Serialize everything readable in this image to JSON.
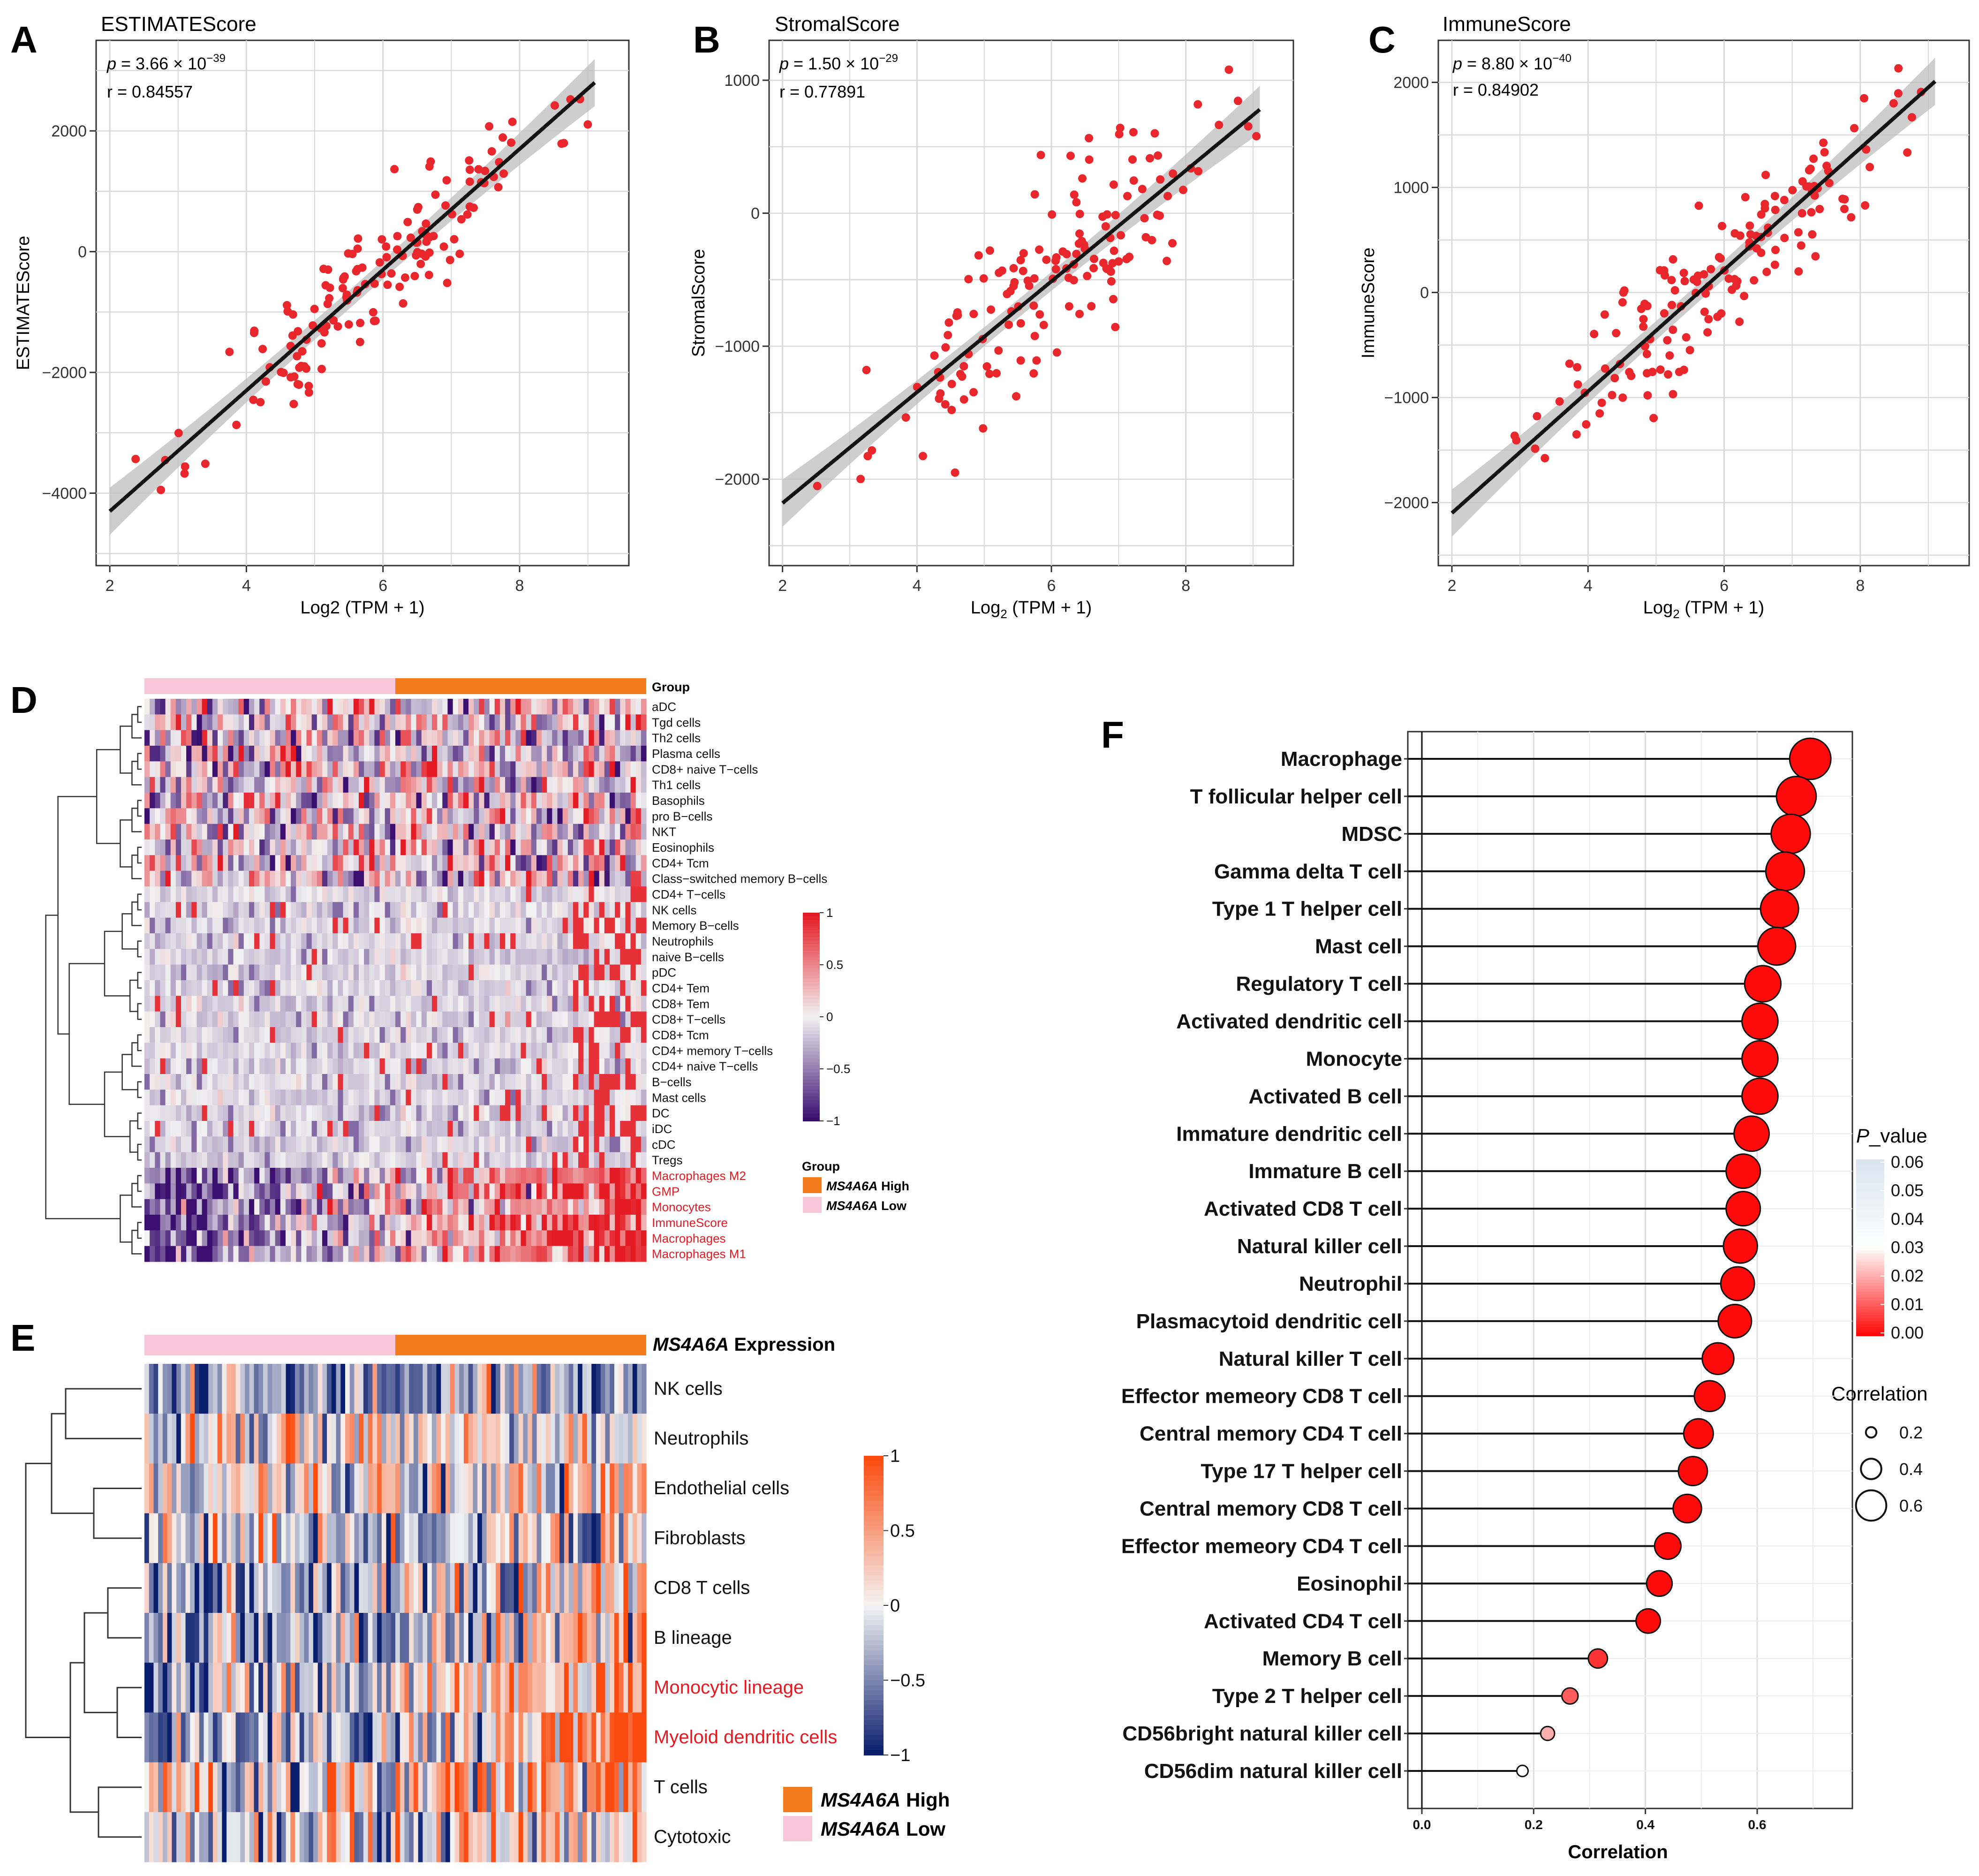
{
  "panel_letters": {
    "A": "A",
    "B": "B",
    "C": "C",
    "D": "D",
    "E": "E",
    "F": "F"
  },
  "colors": {
    "point": "#e8262b",
    "line": "#111111",
    "band": "#bdbdbd",
    "grid": "#d9d9d9",
    "high": "#f37d1e",
    "low": "#f7c6d9",
    "dmax": "#e51b24",
    "dmin": "#3b0f70",
    "emax": "#fb4b0f",
    "emin": "#0a1e6e"
  },
  "chart_data": [
    {
      "id": "A",
      "type": "scatter",
      "title": "ESTIMATEScore",
      "xlabel": "Log2 (TPM + 1)",
      "ylabel": "ESTIMATEScore",
      "p_prefix": "p",
      "p_text": " = 3.66 × 10",
      "p_exp": "−39",
      "r_text": "r = 0.84557",
      "xlim": [
        1.8,
        9.6
      ],
      "ylim": [
        -5200,
        3500
      ],
      "xticks": [
        2,
        4,
        6,
        8
      ],
      "yticks": [
        -4000,
        -2000,
        0,
        2000
      ],
      "ytick_labels": [
        "−4000",
        "−2000",
        "0",
        "2000"
      ],
      "fit": {
        "x0": 2.0,
        "y0": -4300,
        "x1": 9.1,
        "y1": 2800
      },
      "n_points": 150,
      "noise": 550,
      "seed": 11
    },
    {
      "id": "B",
      "type": "scatter",
      "title": "StromalScore",
      "xlabel_main": "Log",
      "xlabel_sub": "2",
      "xlabel_rest": " (TPM + 1)",
      "ylabel": "StromalScore",
      "p_prefix": "p",
      "p_text": " = 1.50 × 10",
      "p_exp": "−29",
      "r_text": "r = 0.77891",
      "xlim": [
        1.8,
        9.6
      ],
      "ylim": [
        -2650,
        1300
      ],
      "xticks": [
        2,
        4,
        6,
        8
      ],
      "yticks": [
        -2000,
        -1000,
        0,
        1000
      ],
      "ytick_labels": [
        "−2000",
        "−1000",
        "0",
        "1000"
      ],
      "fit": {
        "x0": 2.0,
        "y0": -2180,
        "x1": 9.1,
        "y1": 780
      },
      "n_points": 150,
      "noise": 330,
      "seed": 23
    },
    {
      "id": "C",
      "type": "scatter",
      "title": "ImmuneScore",
      "xlabel_main": "Log",
      "xlabel_sub": "2",
      "xlabel_rest": " (TPM + 1)",
      "ylabel": "ImmuneScore",
      "p_prefix": "p",
      "p_text": " = 8.80 × 10",
      "p_exp": "−40",
      "r_text": "r = 0.84902",
      "xlim": [
        1.8,
        9.6
      ],
      "ylim": [
        -2600,
        2400
      ],
      "xticks": [
        2,
        4,
        6,
        8
      ],
      "yticks": [
        -2000,
        -1000,
        0,
        1000,
        2000
      ],
      "ytick_labels": [
        "−2000",
        "−1000",
        "0",
        "1000",
        "2000"
      ],
      "fit": {
        "x0": 2.0,
        "y0": -2100,
        "x1": 9.1,
        "y1": 2010
      },
      "n_points": 150,
      "noise": 340,
      "seed": 37
    },
    {
      "id": "D",
      "type": "heatmap",
      "group_label": "Group",
      "rows": [
        "aDC",
        "Tgd cells",
        "Th2 cells",
        "Plasma cells",
        "CD8+ naive T−cells",
        "Th1 cells",
        "Basophils",
        "pro B−cells",
        "NKT",
        "Eosinophils",
        "CD4+ Tcm",
        "Class−switched memory B−cells",
        "CD4+ T−cells",
        "NK cells",
        "Memory B−cells",
        "Neutrophils",
        "naive B−cells",
        "pDC",
        "CD4+ Tem",
        "CD8+ Tem",
        "CD8+ T−cells",
        "CD8+ Tcm",
        "CD4+ memory T−cells",
        "CD4+ naive T−cells",
        "B−cells",
        "Mast cells",
        "DC",
        "iDC",
        "cDC",
        "Tregs",
        "Macrophages M2",
        "GMP",
        "Monocytes",
        "ImmuneScore",
        "Macrophages",
        "Macrophages M1"
      ],
      "highlight_rows": [
        "Macrophages M2",
        "GMP",
        "Monocytes",
        "ImmuneScore",
        "Macrophages",
        "Macrophages M1"
      ],
      "scale_ticks": [
        1,
        0.5,
        0,
        -0.5,
        -1
      ],
      "scale_labels": [
        "1",
        "0.5",
        "0",
        "−0.5",
        "−1"
      ],
      "legend_title": "Group",
      "legend_items": [
        {
          "name": "MS4A6A",
          "suffix": " High",
          "color": "#f37d1e"
        },
        {
          "name": "MS4A6A",
          "suffix": " Low",
          "color": "#f7c6d9"
        }
      ]
    },
    {
      "id": "E",
      "type": "heatmap",
      "header_italic": "MS4A6A",
      "header_rest": " Expression",
      "rows": [
        "NK cells",
        "Neutrophils",
        "Endothelial cells",
        "Fibroblasts",
        "CD8 T cells",
        "B lineage",
        "Monocytic lineage",
        "Myeloid dendritic cells",
        "T cells",
        "Cytotoxic"
      ],
      "highlight_rows": [
        "Monocytic lineage",
        "Myeloid dendritic cells"
      ],
      "scale_ticks": [
        1,
        0.5,
        0,
        -0.5,
        -1
      ],
      "scale_labels": [
        "1",
        "0.5",
        "0",
        "−0.5",
        "−1"
      ],
      "legend_items": [
        {
          "name": "MS4A6A",
          "suffix": " High",
          "color": "#f37d1e"
        },
        {
          "name": "MS4A6A",
          "suffix": " Low",
          "color": "#f7c6d9"
        }
      ]
    },
    {
      "id": "F",
      "type": "lollipop",
      "xlabel": "Correlation",
      "xlim": [
        0,
        0.72
      ],
      "xticks": [
        0,
        0.2,
        0.4,
        0.6
      ],
      "xtick_labels": [
        "0.0",
        "0.2",
        "0.4",
        "0.6"
      ],
      "categories": [
        "Macrophage",
        "T follicular helper cell",
        "MDSC",
        "Gamma delta T cell",
        "Type 1 T helper cell",
        "Mast cell",
        "Regulatory T cell",
        "Activated dendritic cell",
        "Monocyte",
        "Activated B cell",
        "Immature dendritic cell",
        "Immature  B cell",
        "Activated CD8 T cell",
        "Natural killer cell",
        "Neutrophil",
        "Plasmacytoid dendritic cell",
        "Natural killer T cell",
        "Effector memeory CD8 T cell",
        "Central memory CD4 T cell",
        "Type 17 T helper cell",
        "Central memory CD8 T cell",
        "Effector memeory CD4 T cell",
        "Eosinophil",
        "Activated CD4 T cell",
        "Memory B cell",
        "Type 2 T helper cell",
        "CD56bright natural killer cell",
        "CD56dim natural killer cell"
      ],
      "values": [
        0.695,
        0.67,
        0.66,
        0.65,
        0.64,
        0.635,
        0.61,
        0.605,
        0.605,
        0.605,
        0.59,
        0.575,
        0.575,
        0.57,
        0.565,
        0.56,
        0.53,
        0.515,
        0.495,
        0.485,
        0.475,
        0.44,
        0.425,
        0.405,
        0.315,
        0.265,
        0.225,
        0.18
      ],
      "p_values": [
        0,
        0,
        0,
        0,
        0,
        0,
        0,
        0,
        0,
        0,
        0,
        0,
        0,
        0,
        0,
        0,
        0,
        0,
        0,
        0,
        0,
        0,
        0,
        0,
        0.005,
        0.01,
        0.02,
        0.03
      ],
      "pvalue_legend_prefix": "P",
      "pvalue_legend_rest": "_value",
      "pvalue_ticks": [
        "0.06",
        "0.05",
        "0.04",
        "0.03",
        "0.02",
        "0.01",
        "0.00"
      ],
      "size_legend_title": "Correlation",
      "size_legend_values": [
        0.2,
        0.4,
        0.6
      ],
      "size_legend_labels": [
        "0.2",
        "0.4",
        "0.6"
      ]
    }
  ]
}
